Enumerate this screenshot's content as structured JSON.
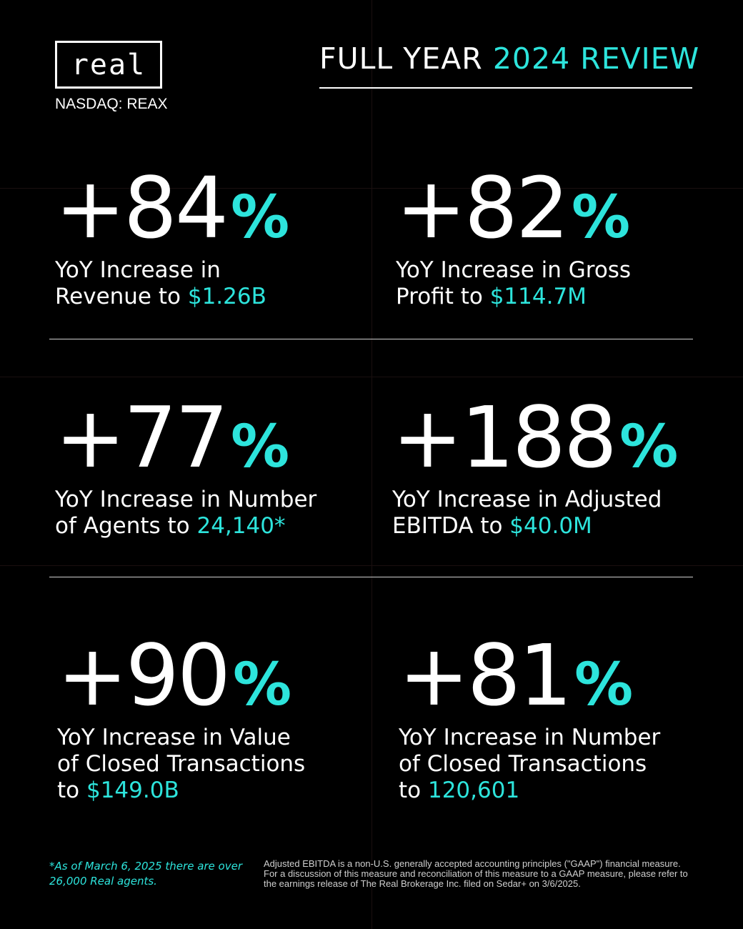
{
  "logo": {
    "text": "real",
    "ticker": "NASDAQ: REAX"
  },
  "header": {
    "title_plain": "FULL YEAR ",
    "title_accent": "2024 REVIEW"
  },
  "stats": [
    {
      "value": "+84",
      "pct": "%",
      "line1": "YoY Increase in",
      "line2_plain": "Revenue to ",
      "line2_accent": "$1.26B",
      "line3_plain": "",
      "line3_accent": ""
    },
    {
      "value": "+82",
      "pct": "%",
      "line1": "YoY Increase in Gross",
      "line2_plain": "Profit to ",
      "line2_accent": "$114.7M",
      "line3_plain": "",
      "line3_accent": ""
    },
    {
      "value": "+77",
      "pct": "%",
      "line1": "YoY Increase in Number",
      "line2_plain": "of Agents to ",
      "line2_accent": "24,140*",
      "line3_plain": "",
      "line3_accent": ""
    },
    {
      "value": "+188",
      "pct": "%",
      "line1": "YoY Increase in Adjusted",
      "line2_plain": "EBITDA to ",
      "line2_accent": "$40.0M",
      "line3_plain": "",
      "line3_accent": ""
    },
    {
      "value": "+90",
      "pct": "%",
      "line1": "YoY Increase in Value",
      "line2_plain": "of Closed Transactions",
      "line2_accent": "",
      "line3_plain": "to ",
      "line3_accent": "$149.0B"
    },
    {
      "value": "+81",
      "pct": "%",
      "line1": "YoY Increase in Number",
      "line2_plain": "of Closed Transactions",
      "line2_accent": "",
      "line3_plain": "to ",
      "line3_accent": "120,601"
    }
  ],
  "footnote": "*As of March 6, 2025 there are over 26,000 Real agents.",
  "disclaimer": "Adjusted EBITDA is a non-U.S. generally accepted accounting principles (\"GAAP\") financial measure. For a discussion of this measure and reconciliation of this measure to a GAAP measure, please refer to the earnings release of The Real Brokerage Inc. filed on Sedar+ on 3/6/2025.",
  "colors": {
    "accent": "#2de4dc",
    "background": "#000000",
    "text": "#ffffff"
  }
}
